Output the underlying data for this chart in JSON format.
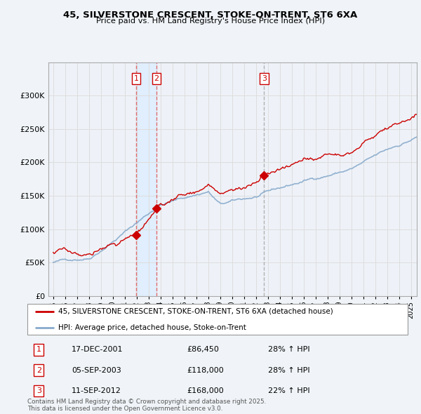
{
  "title1": "45, SILVERSTONE CRESCENT, STOKE-ON-TRENT, ST6 6XA",
  "title2": "Price paid vs. HM Land Registry's House Price Index (HPI)",
  "legend_red": "45, SILVERSTONE CRESCENT, STOKE-ON-TRENT, ST6 6XA (detached house)",
  "legend_blue": "HPI: Average price, detached house, Stoke-on-Trent",
  "transactions": [
    {
      "num": 1,
      "date": "17-DEC-2001",
      "price": 86450,
      "hpi_pct": "28% ↑ HPI",
      "x": 2001.958
    },
    {
      "num": 2,
      "date": "05-SEP-2003",
      "price": 118000,
      "hpi_pct": "28% ↑ HPI",
      "x": 2003.667
    },
    {
      "num": 3,
      "date": "11-SEP-2012",
      "price": 168000,
      "hpi_pct": "22% ↑ HPI",
      "x": 2012.694
    }
  ],
  "ylim": [
    0,
    350000
  ],
  "yticks": [
    0,
    50000,
    100000,
    150000,
    200000,
    250000,
    300000
  ],
  "vline12_color": "#e06060",
  "vline3_color": "#aaaaaa",
  "shade_color": "#ddeeff",
  "red_line_color": "#cc0000",
  "blue_line_color": "#88aacc",
  "grid_color": "#dddddd",
  "background_color": "#f0f4f8",
  "plot_bg_color": "#eef2f8",
  "footer": "Contains HM Land Registry data © Crown copyright and database right 2025.\nThis data is licensed under the Open Government Licence v3.0."
}
